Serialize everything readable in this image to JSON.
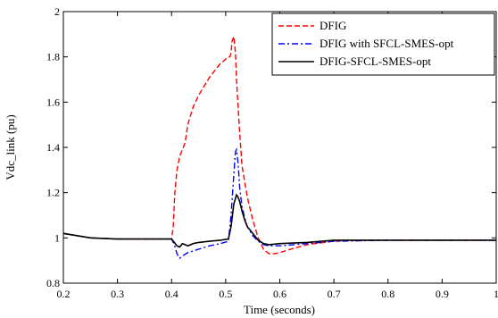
{
  "chart_data": {
    "type": "line",
    "title": "",
    "xlabel": "Time (seconds)",
    "ylabel": "Vdc_link (pu)",
    "xlim": [
      0.2,
      1.0
    ],
    "ylim": [
      0.8,
      2.0
    ],
    "xticks": [
      0.2,
      0.3,
      0.4,
      0.5,
      0.6,
      0.7,
      0.8,
      0.9,
      1.0
    ],
    "xtick_labels": [
      "0.2",
      "0.3",
      "0.4",
      "0.5",
      "0.6",
      "0.7",
      "0.8",
      "0.9",
      "1"
    ],
    "yticks": [
      0.8,
      1.0,
      1.2,
      1.4,
      1.6,
      1.8,
      2.0
    ],
    "ytick_labels": [
      "0.8",
      "1",
      "1.2",
      "1.4",
      "1.6",
      "1.8",
      "2"
    ],
    "grid": false,
    "legend_position": "top-right",
    "series": [
      {
        "name": "DFIG",
        "color": "#ff0000",
        "style": "dashed",
        "x": [
          0.2,
          0.25,
          0.3,
          0.35,
          0.4,
          0.403,
          0.406,
          0.41,
          0.415,
          0.42,
          0.425,
          0.43,
          0.44,
          0.45,
          0.46,
          0.47,
          0.48,
          0.49,
          0.5,
          0.505,
          0.508,
          0.51,
          0.512,
          0.515,
          0.518,
          0.52,
          0.525,
          0.53,
          0.54,
          0.55,
          0.56,
          0.57,
          0.58,
          0.59,
          0.6,
          0.62,
          0.65,
          0.7,
          0.75,
          0.8,
          0.85,
          0.9,
          0.95,
          1.0
        ],
        "y": [
          1.02,
          1.0,
          0.995,
          0.995,
          0.995,
          1.05,
          1.2,
          1.3,
          1.36,
          1.39,
          1.42,
          1.5,
          1.58,
          1.63,
          1.67,
          1.71,
          1.74,
          1.77,
          1.79,
          1.8,
          1.8,
          1.82,
          1.87,
          1.89,
          1.82,
          1.7,
          1.5,
          1.32,
          1.18,
          1.08,
          1.0,
          0.95,
          0.93,
          0.93,
          0.935,
          0.95,
          0.97,
          0.985,
          0.99,
          0.99,
          0.99,
          0.99,
          0.99,
          0.99
        ]
      },
      {
        "name": "DFIG with SFCL-SMES-opt",
        "color": "#0000ff",
        "style": "dashdot",
        "x": [
          0.2,
          0.25,
          0.3,
          0.35,
          0.4,
          0.405,
          0.41,
          0.415,
          0.42,
          0.43,
          0.45,
          0.47,
          0.49,
          0.505,
          0.51,
          0.515,
          0.518,
          0.52,
          0.523,
          0.526,
          0.53,
          0.535,
          0.54,
          0.55,
          0.56,
          0.57,
          0.58,
          0.6,
          0.65,
          0.7,
          0.8,
          0.9,
          1.0
        ],
        "y": [
          1.02,
          1.0,
          0.995,
          0.995,
          0.995,
          0.97,
          0.93,
          0.91,
          0.92,
          0.935,
          0.95,
          0.965,
          0.975,
          0.985,
          1.1,
          1.28,
          1.38,
          1.39,
          1.33,
          1.22,
          1.14,
          1.09,
          1.05,
          1.01,
          0.985,
          0.97,
          0.965,
          0.965,
          0.975,
          0.985,
          0.99,
          0.99,
          0.99
        ]
      },
      {
        "name": "DFIG-SFCL-SMES-opt",
        "color": "#000000",
        "style": "solid",
        "x": [
          0.2,
          0.25,
          0.3,
          0.35,
          0.4,
          0.405,
          0.41,
          0.415,
          0.42,
          0.425,
          0.43,
          0.44,
          0.45,
          0.47,
          0.49,
          0.505,
          0.51,
          0.515,
          0.52,
          0.523,
          0.526,
          0.53,
          0.535,
          0.54,
          0.55,
          0.56,
          0.57,
          0.58,
          0.6,
          0.65,
          0.7,
          0.8,
          0.9,
          1.0
        ],
        "y": [
          1.02,
          1.0,
          0.995,
          0.995,
          0.995,
          0.98,
          0.965,
          0.96,
          0.975,
          0.97,
          0.965,
          0.975,
          0.98,
          0.985,
          0.99,
          0.995,
          1.05,
          1.15,
          1.19,
          1.18,
          1.16,
          1.12,
          1.08,
          1.05,
          1.02,
          0.99,
          0.975,
          0.97,
          0.975,
          0.98,
          0.99,
          0.99,
          0.99,
          0.99
        ]
      }
    ]
  }
}
